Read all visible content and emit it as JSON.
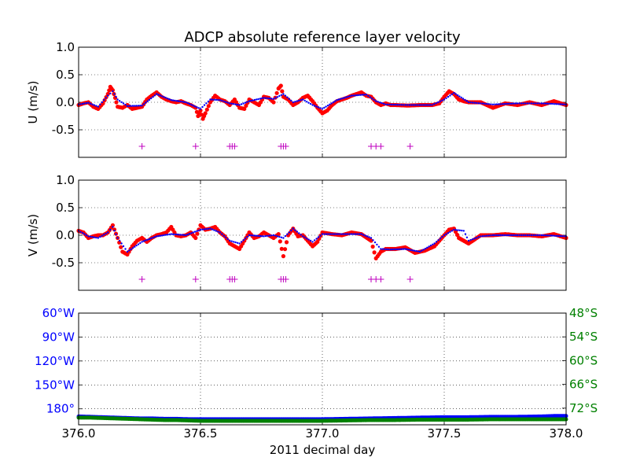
{
  "figure": {
    "title": "ADCP absolute reference layer velocity",
    "xlabel": "2011 decimal day"
  },
  "colors": {
    "raw_points": "#ff0000",
    "smoothed": "#0000ff",
    "flags": "#bf00bf",
    "longitude": "#0000ff",
    "latitude": "#008000"
  },
  "chart_data": [
    {
      "type": "scatter",
      "panel": "u",
      "ylabel": "U (m/s)",
      "xlim": [
        376.0,
        378.0
      ],
      "ylim": [
        -1.0,
        1.0
      ],
      "yticks": [
        "1.0",
        "0.5",
        "0.0",
        "-0.5"
      ],
      "ytick_values": [
        1.0,
        0.5,
        0.0,
        -0.5
      ],
      "grid": true,
      "series": [
        {
          "role": "raw",
          "x": [
            376.0,
            376.02,
            376.04,
            376.06,
            376.08,
            376.1,
            376.12,
            376.13,
            376.14,
            376.15,
            376.16,
            376.18,
            376.2,
            376.22,
            376.24,
            376.26,
            376.28,
            376.3,
            376.32,
            376.34,
            376.36,
            376.38,
            376.4,
            376.42,
            376.44,
            376.46,
            376.48,
            376.49,
            376.5,
            376.51,
            376.52,
            376.54,
            376.56,
            376.58,
            376.6,
            376.62,
            376.64,
            376.66,
            376.68,
            376.7,
            376.72,
            376.74,
            376.76,
            376.78,
            376.8,
            376.82,
            376.83,
            376.84,
            376.86,
            376.88,
            376.9,
            376.92,
            376.94,
            376.96,
            376.98,
            377.0,
            377.02,
            377.04,
            377.06,
            377.08,
            377.1,
            377.12,
            377.14,
            377.16,
            377.18,
            377.2,
            377.22,
            377.24,
            377.26,
            377.28,
            377.3,
            377.35,
            377.4,
            377.45,
            377.48,
            377.5,
            377.52,
            377.54,
            377.56,
            377.58,
            377.6,
            377.65,
            377.7,
            377.75,
            377.8,
            377.85,
            377.9,
            377.95,
            378.0
          ],
          "y": [
            -0.05,
            -0.02,
            0.0,
            -0.08,
            -0.12,
            -0.02,
            0.15,
            0.28,
            0.22,
            0.08,
            -0.08,
            -0.1,
            -0.05,
            -0.12,
            -0.1,
            -0.08,
            0.05,
            0.12,
            0.18,
            0.1,
            0.05,
            0.02,
            0.0,
            0.02,
            -0.02,
            -0.05,
            -0.1,
            -0.25,
            -0.15,
            -0.3,
            -0.2,
            0.0,
            0.12,
            0.05,
            0.02,
            -0.05,
            0.05,
            -0.1,
            -0.12,
            0.05,
            0.0,
            -0.05,
            0.1,
            0.08,
            0.0,
            0.25,
            0.3,
            0.1,
            0.05,
            -0.05,
            0.0,
            0.08,
            0.12,
            0.02,
            -0.1,
            -0.2,
            -0.15,
            -0.05,
            0.02,
            0.05,
            0.08,
            0.12,
            0.15,
            0.18,
            0.12,
            0.1,
            0.0,
            -0.05,
            -0.02,
            -0.05,
            -0.05,
            -0.06,
            -0.05,
            -0.05,
            -0.02,
            0.1,
            0.2,
            0.15,
            0.05,
            0.02,
            0.0,
            0.0,
            -0.1,
            -0.02,
            -0.05,
            0.0,
            -0.05,
            0.02,
            -0.05
          ]
        },
        {
          "role": "smoothed",
          "x": [
            376.0,
            376.04,
            376.08,
            376.12,
            376.14,
            376.16,
            376.2,
            376.26,
            376.32,
            376.38,
            376.44,
            376.5,
            376.54,
            376.58,
            376.62,
            376.66,
            376.7,
            376.76,
            376.8,
            376.84,
            376.88,
            376.92,
            376.96,
            377.0,
            377.06,
            377.12,
            377.18,
            377.22,
            377.26,
            377.35,
            377.45,
            377.5,
            377.54,
            377.6,
            377.7,
            377.8,
            377.9,
            378.0
          ],
          "y": [
            -0.04,
            -0.01,
            -0.08,
            0.12,
            0.2,
            0.05,
            -0.07,
            -0.06,
            0.15,
            0.04,
            0.0,
            -0.12,
            0.05,
            0.04,
            -0.02,
            -0.05,
            0.02,
            0.08,
            0.06,
            0.15,
            0.0,
            0.05,
            -0.05,
            -0.12,
            0.04,
            0.12,
            0.14,
            0.02,
            -0.04,
            -0.05,
            -0.05,
            0.05,
            0.17,
            0.0,
            -0.04,
            -0.02,
            -0.02,
            -0.04
          ]
        },
        {
          "role": "flags",
          "x": [
            376.26,
            376.48,
            376.62,
            376.63,
            376.64,
            376.83,
            376.84,
            376.85,
            377.2,
            377.22,
            377.24,
            377.36
          ],
          "y": [
            -0.8,
            -0.8,
            -0.8,
            -0.8,
            -0.8,
            -0.8,
            -0.8,
            -0.8,
            -0.8,
            -0.8,
            -0.8,
            -0.8
          ]
        }
      ]
    },
    {
      "type": "scatter",
      "panel": "v",
      "ylabel": "V (m/s)",
      "xlim": [
        376.0,
        378.0
      ],
      "ylim": [
        -1.0,
        1.0
      ],
      "yticks": [
        "1.0",
        "0.5",
        "0.0",
        "-0.5"
      ],
      "ytick_values": [
        1.0,
        0.5,
        0.0,
        -0.5
      ],
      "grid": true,
      "series": [
        {
          "role": "raw",
          "x": [
            376.0,
            376.02,
            376.04,
            376.06,
            376.08,
            376.1,
            376.12,
            376.14,
            376.16,
            376.18,
            376.2,
            376.22,
            376.24,
            376.26,
            376.28,
            376.3,
            376.32,
            376.34,
            376.36,
            376.38,
            376.4,
            376.42,
            376.44,
            376.46,
            376.48,
            376.5,
            376.52,
            376.54,
            376.56,
            376.58,
            376.6,
            376.62,
            376.64,
            376.66,
            376.68,
            376.7,
            376.72,
            376.74,
            376.76,
            376.78,
            376.8,
            376.82,
            376.84,
            376.86,
            376.88,
            376.9,
            376.92,
            376.94,
            376.96,
            376.98,
            377.0,
            377.04,
            377.08,
            377.12,
            377.16,
            377.2,
            377.22,
            377.24,
            377.26,
            377.3,
            377.34,
            377.38,
            377.42,
            377.46,
            377.48,
            377.5,
            377.52,
            377.54,
            377.56,
            377.6,
            377.65,
            377.7,
            377.75,
            377.8,
            377.85,
            377.9,
            377.95,
            378.0
          ],
          "y": [
            0.08,
            0.05,
            -0.05,
            -0.02,
            0.0,
            0.0,
            0.05,
            0.18,
            -0.05,
            -0.3,
            -0.35,
            -0.2,
            -0.1,
            -0.05,
            -0.12,
            -0.05,
            0.0,
            0.02,
            0.05,
            0.15,
            0.0,
            -0.02,
            0.0,
            0.05,
            -0.05,
            0.18,
            0.1,
            0.12,
            0.15,
            0.05,
            -0.02,
            -0.15,
            -0.2,
            -0.25,
            -0.1,
            0.05,
            -0.05,
            -0.02,
            0.05,
            0.0,
            -0.05,
            0.02,
            -0.38,
            0.0,
            0.12,
            -0.02,
            0.0,
            -0.1,
            -0.2,
            -0.12,
            0.05,
            0.02,
            0.0,
            0.05,
            0.02,
            -0.1,
            -0.42,
            -0.3,
            -0.25,
            -0.25,
            -0.22,
            -0.32,
            -0.28,
            -0.2,
            -0.1,
            0.0,
            0.1,
            0.12,
            -0.05,
            -0.15,
            0.0,
            0.0,
            0.02,
            0.0,
            0.0,
            -0.02,
            0.02,
            -0.05
          ]
        },
        {
          "role": "smoothed",
          "x": [
            376.0,
            376.04,
            376.08,
            376.12,
            376.14,
            376.16,
            376.2,
            376.26,
            376.32,
            376.38,
            376.44,
            376.5,
            376.54,
            376.58,
            376.62,
            376.66,
            376.7,
            376.76,
            376.8,
            376.84,
            376.88,
            376.92,
            376.96,
            377.0,
            377.08,
            377.16,
            377.2,
            377.24,
            377.28,
            377.34,
            377.4,
            377.46,
            377.5,
            377.54,
            377.58,
            377.6,
            377.65,
            377.7,
            377.8,
            377.9,
            378.0
          ],
          "y": [
            0.08,
            -0.02,
            -0.05,
            0.05,
            0.15,
            -0.05,
            -0.3,
            -0.12,
            -0.02,
            0.02,
            0.0,
            0.1,
            0.12,
            0.05,
            -0.1,
            -0.15,
            0.0,
            -0.02,
            0.0,
            -0.05,
            0.12,
            -0.02,
            -0.12,
            0.02,
            0.02,
            0.02,
            -0.05,
            -0.25,
            -0.26,
            -0.25,
            -0.3,
            -0.15,
            0.0,
            0.1,
            0.08,
            -0.1,
            -0.02,
            0.0,
            0.0,
            0.0,
            -0.02
          ]
        },
        {
          "role": "flags",
          "x": [
            376.26,
            376.48,
            376.62,
            376.63,
            376.64,
            376.83,
            376.84,
            376.85,
            377.2,
            377.22,
            377.24,
            377.36
          ],
          "y": [
            -0.8,
            -0.8,
            -0.8,
            -0.8,
            -0.8,
            -0.8,
            -0.8,
            -0.8,
            -0.8,
            -0.8,
            -0.8,
            -0.8
          ]
        }
      ]
    },
    {
      "type": "scatter",
      "panel": "position",
      "xlim": [
        376.0,
        378.0
      ],
      "xticks": [
        "376.0",
        "376.5",
        "377.0",
        "377.5",
        "378.0"
      ],
      "xtick_values": [
        376.0,
        376.5,
        377.0,
        377.5,
        378.0
      ],
      "grid": true,
      "left_axis": {
        "ylim": [
          -200,
          -60
        ],
        "yticks": [
          "60°W",
          "90°W",
          "120°W",
          "150°W",
          "180°"
        ],
        "ytick_values": [
          -60,
          -90,
          -120,
          -150,
          -180
        ]
      },
      "right_axis": {
        "ylim": [
          -76.2,
          -48
        ],
        "yticks": [
          "48°S",
          "54°S",
          "60°S",
          "66°S",
          "72°S"
        ],
        "ytick_values": [
          -48,
          -54,
          -60,
          -66,
          -72
        ]
      },
      "series": [
        {
          "role": "longitude",
          "axis": "left",
          "x": [
            376.0,
            376.05,
            376.1,
            376.15,
            376.2,
            376.25,
            376.3,
            376.35,
            376.4,
            376.45,
            376.5,
            376.6,
            376.7,
            376.8,
            376.9,
            377.0,
            377.1,
            377.2,
            377.3,
            377.4,
            377.5,
            377.6,
            377.7,
            377.8,
            377.9,
            377.95,
            378.0
          ],
          "y": [
            -189.5,
            -190.0,
            -190.5,
            -191.0,
            -191.5,
            -192.0,
            -192.0,
            -192.5,
            -192.5,
            -193.0,
            -193.0,
            -193.0,
            -193.0,
            -193.0,
            -193.0,
            -193.0,
            -192.5,
            -192.0,
            -191.5,
            -191.0,
            -190.5,
            -190.5,
            -190.0,
            -190.0,
            -189.5,
            -189.0,
            -189.0
          ]
        },
        {
          "role": "latitude",
          "axis": "right",
          "x": [
            376.0,
            376.05,
            376.1,
            376.15,
            376.2,
            376.25,
            376.3,
            376.35,
            376.4,
            376.45,
            376.5,
            376.6,
            376.7,
            376.8,
            376.9,
            377.0,
            377.1,
            377.2,
            377.3,
            377.4,
            377.5,
            377.6,
            377.7,
            377.8,
            377.9,
            378.0
          ],
          "y": [
            -74.4,
            -74.4,
            -74.5,
            -74.6,
            -74.7,
            -74.8,
            -74.9,
            -75.0,
            -75.0,
            -75.1,
            -75.2,
            -75.2,
            -75.2,
            -75.2,
            -75.2,
            -75.2,
            -75.1,
            -75.0,
            -75.0,
            -74.9,
            -74.9,
            -74.9,
            -74.8,
            -74.8,
            -74.8,
            -74.8
          ]
        }
      ]
    }
  ]
}
